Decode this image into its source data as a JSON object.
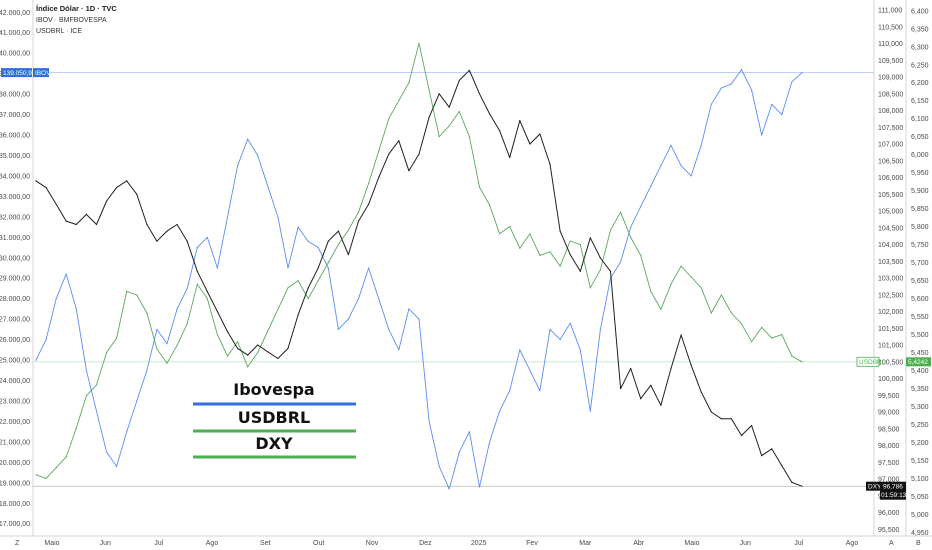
{
  "header": {
    "title": "Índice Dólar · 1D · TVC",
    "line2": "IBOV · BMFBOVESPA",
    "line3": "USDBRL · ICE"
  },
  "colors": {
    "ibov": "#5b8def",
    "usdbrl": "#5aa75f",
    "dxy": "#1f1f1f",
    "price_line": "#a9bdf0",
    "usdbrl_line": "#c9e3c9",
    "dxy_line": "#b7b7b7",
    "ibov_tag": "#2f6fe0",
    "usdbrl_tag": "#4caf50",
    "dxy_tag": "#111111"
  },
  "legend": [
    {
      "label": "Ibovespa",
      "color": "#2f6fe0"
    },
    {
      "label": "USDBRL",
      "color": "#4caf50"
    },
    {
      "label": "DXY",
      "color": "#4caf50"
    }
  ],
  "left_axis": {
    "labels": [
      "142.000,00",
      "141.000,00",
      "140.000,00",
      "139.000,00",
      "138.000,00",
      "137.000,00",
      "136.000,00",
      "135.000,00",
      "134.000,00",
      "133.000,00",
      "132.000,00",
      "131.000,00",
      "130.000,00",
      "129.000,00",
      "128.000,00",
      "127.000,00",
      "126.000,00",
      "125.000,00",
      "124.000,00",
      "123.000,00",
      "122.000,00",
      "121.000,00",
      "120.000,00",
      "119.000,00",
      "118.000,00",
      "117.000,00"
    ],
    "tag_label": "139.050,93",
    "tag_name": "IBOV",
    "corner": "Z"
  },
  "dxy_axis": {
    "labels": [
      "111,000",
      "110,500",
      "110,000",
      "109,500",
      "109,000",
      "108,500",
      "108,000",
      "107,500",
      "107,000",
      "106,500",
      "106,000",
      "105,500",
      "105,000",
      "104,500",
      "104,000",
      "103,500",
      "103,000",
      "102,500",
      "102,000",
      "101,500",
      "101,000",
      "100,500",
      "100,000",
      "99,500",
      "99,000",
      "98,500",
      "98,000",
      "97,500",
      "97,000",
      "96,500",
      "96,000",
      "95,500"
    ],
    "tag_value": "96,786",
    "tag_name": "DXY",
    "countdown": "01:59:13",
    "corner": "A"
  },
  "usdbrl_axis": {
    "labels": [
      "6,400",
      "6,350",
      "6,300",
      "6,250",
      "6,200",
      "6,150",
      "6,100",
      "6,050",
      "6,000",
      "5,950",
      "5,900",
      "5,850",
      "5,800",
      "5,750",
      "5,700",
      "5,650",
      "5,600",
      "5,550",
      "5,500",
      "5,450",
      "5,400",
      "5,350",
      "5,300",
      "5,250",
      "5,200",
      "5,150",
      "5,100",
      "5,050",
      "5,000",
      "4,950"
    ],
    "tag_value": "5,4242",
    "tag_name": "USDBRL",
    "corner": "B"
  },
  "time_axis": {
    "labels": [
      "Maio",
      "Jun",
      "Jul",
      "Ago",
      "Set",
      "Out",
      "Nov",
      "Dez",
      "2025",
      "Fev",
      "Mar",
      "Abr",
      "Maio",
      "Jun",
      "Jul",
      "Ago"
    ]
  },
  "chart_data": {
    "type": "line",
    "x_start": "Maio 2024",
    "x_end": "Jul 2025",
    "series": [
      {
        "name": "IBOV",
        "axis": "left",
        "last_value": 139050.93,
        "values": [
          125000,
          126000,
          128000,
          129200,
          127500,
          124500,
          122500,
          120500,
          119800,
          121500,
          123000,
          124500,
          126500,
          125800,
          127500,
          128500,
          130500,
          131000,
          129500,
          132000,
          134500,
          135800,
          135000,
          133500,
          132000,
          129500,
          131500,
          130800,
          130500,
          129500,
          126500,
          127000,
          128000,
          129500,
          128000,
          126500,
          125500,
          127500,
          127000,
          122000,
          119800,
          118700,
          120500,
          121500,
          118800,
          121000,
          122500,
          123500,
          125500,
          124500,
          123500,
          126500,
          126000,
          126800,
          125500,
          122500,
          126500,
          129000,
          129800,
          131500,
          132500,
          133500,
          134500,
          135500,
          134500,
          134000,
          135500,
          137500,
          138300,
          138500,
          139200,
          138200,
          136000,
          137500,
          137000,
          138600,
          139050.93
        ]
      },
      {
        "name": "USDBRL",
        "axis": "right_usdbrl",
        "last_value": 5.4242,
        "values": [
          5.11,
          5.1,
          5.13,
          5.16,
          5.24,
          5.33,
          5.36,
          5.45,
          5.49,
          5.62,
          5.61,
          5.56,
          5.46,
          5.42,
          5.47,
          5.53,
          5.64,
          5.6,
          5.5,
          5.44,
          5.48,
          5.41,
          5.45,
          5.51,
          5.57,
          5.63,
          5.65,
          5.6,
          5.65,
          5.7,
          5.75,
          5.79,
          5.84,
          5.92,
          6.01,
          6.1,
          6.15,
          6.2,
          6.31,
          6.18,
          6.05,
          6.08,
          6.12,
          6.05,
          5.91,
          5.86,
          5.78,
          5.8,
          5.74,
          5.78,
          5.72,
          5.73,
          5.69,
          5.76,
          5.75,
          5.63,
          5.68,
          5.79,
          5.84,
          5.77,
          5.72,
          5.62,
          5.57,
          5.64,
          5.69,
          5.66,
          5.63,
          5.56,
          5.61,
          5.56,
          5.53,
          5.48,
          5.52,
          5.49,
          5.5,
          5.44,
          5.4242
        ]
      },
      {
        "name": "DXY",
        "axis": "right_dxy",
        "last_value": 96.786,
        "values": [
          105.9,
          105.7,
          105.2,
          104.7,
          104.6,
          104.9,
          104.6,
          105.3,
          105.7,
          105.9,
          105.5,
          104.6,
          104.1,
          104.4,
          104.6,
          104.1,
          103.2,
          102.6,
          102.0,
          101.4,
          100.9,
          100.7,
          101.0,
          100.8,
          100.6,
          100.9,
          101.9,
          102.7,
          103.3,
          104.1,
          104.4,
          103.7,
          104.7,
          105.2,
          106.0,
          106.7,
          107.1,
          106.2,
          106.7,
          107.8,
          108.5,
          108.1,
          108.9,
          109.2,
          108.5,
          107.9,
          107.4,
          106.6,
          107.7,
          107.0,
          107.3,
          106.4,
          104.4,
          103.7,
          103.2,
          104.2,
          103.6,
          103.2,
          99.7,
          100.3,
          99.4,
          99.8,
          99.2,
          100.3,
          101.3,
          100.4,
          99.6,
          99.0,
          98.8,
          98.8,
          98.3,
          98.6,
          97.7,
          97.9,
          97.4,
          96.9,
          96.786
        ]
      }
    ],
    "axes": {
      "left": {
        "min": 116400,
        "max": 142600,
        "label": "IBOV"
      },
      "right_usdbrl": {
        "min": 4.94,
        "max": 6.43,
        "label": "USDBRL"
      },
      "right_dxy": {
        "min": 95.3,
        "max": 111.3,
        "label": "DXY"
      }
    },
    "grid": false,
    "legend_position": "bottom-left box"
  }
}
